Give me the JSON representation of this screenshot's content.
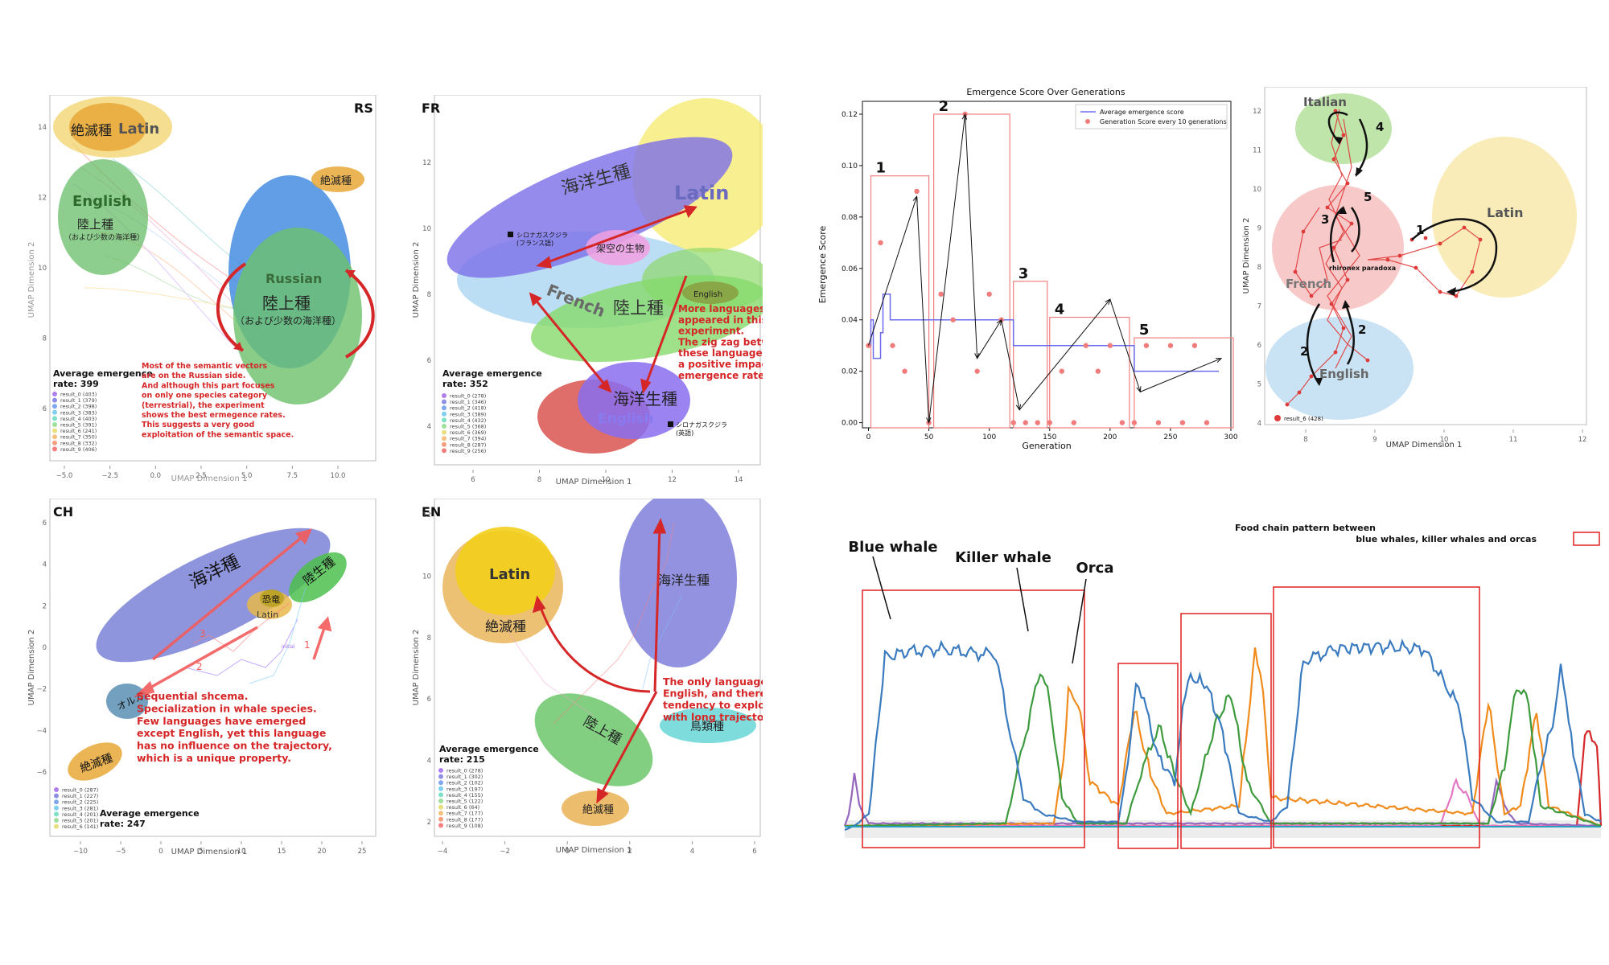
{
  "rs": {
    "tag": "RS",
    "xlabel": "UMAP Dimension 1",
    "ylabel": "UMAP Dimension 2",
    "xticks": [
      "−5.0",
      "−2.5",
      "0.0",
      "2.5",
      "5.0",
      "7.5",
      "10.0"
    ],
    "yticks": [
      "14",
      "12",
      "10",
      "8",
      "6"
    ],
    "clusters": {
      "extinct": "絶滅種",
      "latin": "Latin",
      "english": "English",
      "land": "陸上種",
      "land_sub": "（および少数の海洋種）",
      "russian": "Russian",
      "russian_land": "陸上種",
      "russian_sub": "（および少数の海洋種）",
      "extinct2": "絶滅種"
    },
    "avg_label": "Average emergence",
    "avg_value": "rate:  399",
    "legend": [
      "result_0 (403)",
      "result_1 (379)",
      "result_2 (398)",
      "result_3 (383)",
      "result_4 (403)",
      "result_5 (391)",
      "result_6 (241)",
      "result_7 (350)",
      "result_8 (332)",
      "result_9 (406)"
    ],
    "note": [
      "Most of the semantic vectors",
      "are on the Russian side.",
      "And although this part focuses",
      "on only one species category",
      "(terrestrial), the experiment",
      "shows the best ermegence rates.",
      "This suggests a very good",
      "exploitation of the semantic space."
    ]
  },
  "fr": {
    "tag": "FR",
    "xlabel": "UMAP Dimension 1",
    "ylabel": "UMAP Dimension 2",
    "xticks": [
      "6",
      "8",
      "10",
      "12",
      "14"
    ],
    "yticks": [
      "12",
      "10",
      "8",
      "6",
      "4"
    ],
    "clusters": {
      "marine": "海洋生種",
      "latin": "Latin",
      "imaginary": "架空の生物",
      "french": "French",
      "land": "陸上種",
      "english_small": "English",
      "marine2": "海洋生種",
      "english": "English",
      "blue_whale_fr": "シロナガスクジラ",
      "blue_whale_fr_sub": "(フランス語)",
      "blue_whale_en": "シロナガスクジラ",
      "blue_whale_en_sub": "(英語)"
    },
    "avg_label": "Average emergence",
    "avg_value": "rate:  352",
    "legend": [
      "result_0 (278)",
      "result_1 (346)",
      "result_2 (418)",
      "result_3 (389)",
      "result_4 (432)",
      "result_5 (368)",
      "result_6 (369)",
      "result_7 (394)",
      "result_8 (287)",
      "result_9 (256)"
    ],
    "note": [
      "More languages",
      "appeared in this",
      "experiment.",
      "The zig zag between",
      "these languages had",
      "a positive impact on",
      "emergence rates."
    ]
  },
  "emergence": {
    "title": "Emergence Score Over Generations",
    "xlabel": "Generation",
    "ylabel": "Emergence Score",
    "legend_line": "Average emergence score",
    "legend_dots": "Generation Score every 10 generations",
    "xticks": [
      0,
      50,
      100,
      150,
      200,
      250,
      300
    ],
    "yticks": [
      0.0,
      0.02,
      0.04,
      0.06,
      0.08,
      0.1,
      0.12
    ],
    "box_labels": [
      "1",
      "2",
      "3",
      "4",
      "5"
    ]
  },
  "chart_data": {
    "type": "scatter",
    "title": "Emergence Score Over Generations",
    "xlabel": "Generation",
    "ylabel": "Emergence Score",
    "xlim": [
      -5,
      300
    ],
    "ylim": [
      -0.002,
      0.125
    ],
    "series": [
      {
        "name": "Generation Score every 10 generations",
        "type": "scatter",
        "x": [
          0,
          10,
          20,
          30,
          40,
          50,
          60,
          70,
          80,
          90,
          100,
          110,
          120,
          130,
          140,
          150,
          160,
          170,
          180,
          190,
          200,
          210,
          220,
          230,
          240,
          250,
          260,
          270,
          280
        ],
        "y": [
          0.03,
          0.07,
          0.03,
          0.02,
          0.09,
          0.0,
          0.05,
          0.04,
          0.12,
          0.02,
          0.05,
          0.04,
          0.0,
          0.0,
          0.0,
          0.0,
          0.02,
          0.0,
          0.03,
          0.02,
          0.03,
          0.0,
          0.0,
          0.03,
          0.0,
          0.03,
          0.0,
          0.03,
          0.0
        ]
      },
      {
        "name": "Average emergence score",
        "type": "line",
        "x": [
          0,
          2,
          2,
          4,
          4,
          10,
          10,
          12,
          12,
          18,
          18,
          120,
          120,
          150,
          150,
          210,
          210,
          220,
          220,
          290
        ],
        "y": [
          0.03,
          0.03,
          0.04,
          0.04,
          0.025,
          0.025,
          0.035,
          0.035,
          0.05,
          0.05,
          0.04,
          0.04,
          0.03,
          0.03,
          0.03,
          0.03,
          0.03,
          0.03,
          0.02,
          0.02
        ]
      }
    ]
  },
  "ch": {
    "tag": "CH",
    "xlabel": "UMAP Dimension 1",
    "ylabel": "UMAP Dimension 2",
    "xticks": [
      "−10",
      "−5",
      "0",
      "5",
      "10",
      "15",
      "20",
      "25"
    ],
    "yticks": [
      "6",
      "4",
      "2",
      "0",
      "−2",
      "−4",
      "−6"
    ],
    "clusters": {
      "marine": "海洋種",
      "land": "陸生種",
      "dino": "恐竜",
      "latin": "Latin",
      "orca": "オルカ",
      "extinct": "絶滅種",
      "n3": "3",
      "n2": "2",
      "n1": "1",
      "initial": "initial"
    },
    "avg_label": "Average emergence",
    "avg_value": "rate:  247",
    "legend": [
      "result_0 (287)",
      "result_1 (227)",
      "result_2 (225)",
      "result_3 (281)",
      "result_4 (201)",
      "result_5 (201)",
      "result_6 (141)"
    ],
    "note": [
      "Sequential shcema.",
      "Specialization in whale species.",
      "Few languages have emerged",
      "except English, yet this language",
      "has no influence on the trajectory,",
      "which is a unique property."
    ]
  },
  "en": {
    "tag": "EN",
    "xlabel": "UMAP Dimension 1",
    "ylabel": "UMAP Dimension 2",
    "xticks": [
      "−4",
      "−2",
      "0",
      "2",
      "4",
      "6"
    ],
    "yticks": [
      "12",
      "10",
      "8",
      "6",
      "4",
      "2"
    ],
    "clusters": {
      "latin": "Latin",
      "extinct": "絶滅種",
      "marine": "海洋生種",
      "land": "陸上種",
      "bird": "鳥類種",
      "extinct2": "絶滅種"
    },
    "avg_label": "Average emergence",
    "avg_value": "rate:  215",
    "legend": [
      "result_0 (278)",
      "result_1 (302)",
      "result_2 (102)",
      "result_3 (197)",
      "result_4 (155)",
      "result_5 (122)",
      "result_6 (64)",
      "result_7 (177)",
      "result_8 (177)",
      "result_9 (108)"
    ],
    "note": [
      "The only language is",
      "English, and there's a",
      "tendency to explore,",
      "with long trajectories."
    ]
  },
  "umap4": {
    "xlabel": "UMAP Dimension 1",
    "ylabel": "UMAP Dimension 2",
    "xticks": [
      "8",
      "9",
      "10",
      "11",
      "12"
    ],
    "yticks": [
      "12",
      "11",
      "10",
      "9",
      "8",
      "7",
      "6",
      "5",
      "4"
    ],
    "clusters": {
      "italian": "Italian",
      "latin": "Latin",
      "french": "French",
      "english": "English",
      "species": "rhironex paradoxa",
      "n1": "1",
      "n2a": "2",
      "n2b": "2",
      "n3": "3",
      "n4": "4",
      "n5": "5"
    },
    "legend": "result_6 (428)"
  },
  "foodchain": {
    "legend_text_1": "Food chain pattern between",
    "legend_text_2": "blue whales, killer whales and orcas",
    "blue_whale": "Blue whale",
    "killer_whale": "Killer whale",
    "orca": "Orca",
    "colors": {
      "blue": "#3a7bbf",
      "green": "#3d9a3d",
      "orange": "#f08c1e",
      "purple": "#9467bd",
      "pink": "#e377c2",
      "red": "#d62728",
      "gray": "#7f7f7f"
    }
  }
}
